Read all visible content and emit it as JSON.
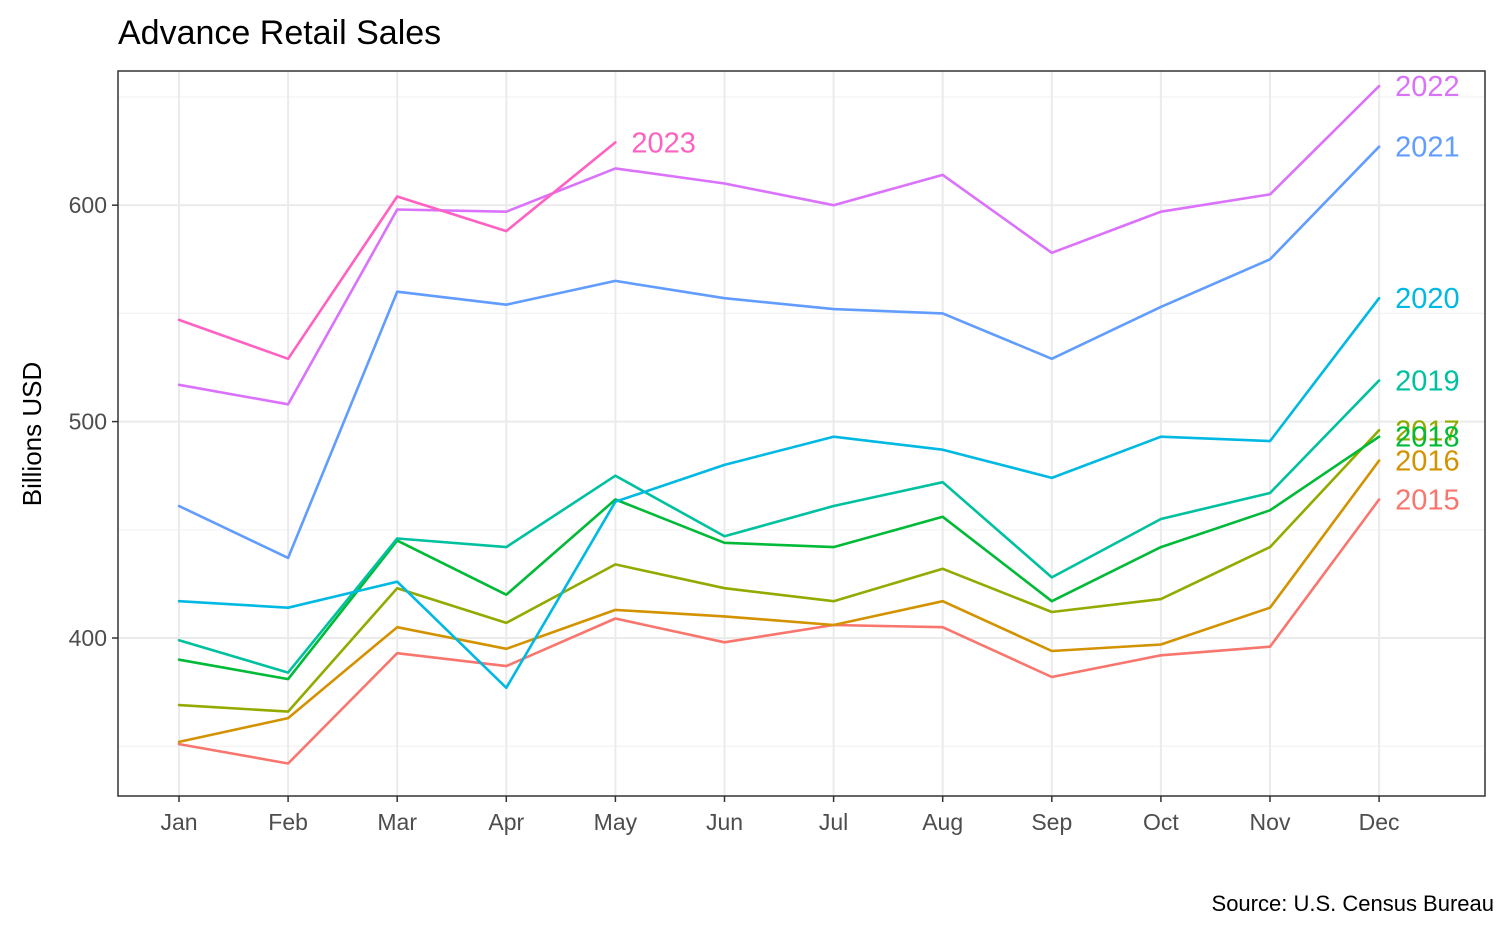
{
  "chart_data": {
    "type": "line",
    "title": "Advance Retail Sales",
    "xlabel": "",
    "ylabel": "Billions USD",
    "caption": "Source: U.S. Census Bureau",
    "categories": [
      "Jan",
      "Feb",
      "Mar",
      "Apr",
      "May",
      "Jun",
      "Jul",
      "Aug",
      "Sep",
      "Oct",
      "Nov",
      "Dec"
    ],
    "ylim": [
      327,
      662
    ],
    "y_major_ticks": [
      400,
      500,
      600
    ],
    "y_minor_ticks": [
      350,
      450,
      550,
      650
    ],
    "grid": true,
    "legend": "direct labels at line ends",
    "series": [
      {
        "name": "2015",
        "color": "#F8766D",
        "values": [
          351,
          342,
          393,
          387,
          409,
          398,
          406,
          405,
          382,
          392,
          396,
          464
        ]
      },
      {
        "name": "2016",
        "color": "#D39200",
        "values": [
          352,
          363,
          405,
          395,
          413,
          410,
          406,
          417,
          394,
          397,
          414,
          482
        ]
      },
      {
        "name": "2017",
        "color": "#93AA00",
        "values": [
          369,
          366,
          423,
          407,
          434,
          423,
          417,
          432,
          412,
          418,
          442,
          496
        ]
      },
      {
        "name": "2018",
        "color": "#00BA38",
        "values": [
          390,
          381,
          445,
          420,
          464,
          444,
          442,
          456,
          417,
          442,
          459,
          493
        ]
      },
      {
        "name": "2019",
        "color": "#00C19F",
        "values": [
          399,
          384,
          446,
          442,
          475,
          447,
          461,
          472,
          428,
          455,
          467,
          519
        ]
      },
      {
        "name": "2020",
        "color": "#00B9E3",
        "values": [
          417,
          414,
          426,
          377,
          463,
          480,
          493,
          487,
          474,
          493,
          491,
          557
        ]
      },
      {
        "name": "2021",
        "color": "#619CFF",
        "values": [
          461,
          437,
          560,
          554,
          565,
          557,
          552,
          550,
          529,
          553,
          575,
          627
        ]
      },
      {
        "name": "2022",
        "color": "#DB72FB",
        "values": [
          517,
          508,
          598,
          597,
          617,
          610,
          600,
          614,
          578,
          597,
          605,
          655
        ]
      },
      {
        "name": "2023",
        "color": "#FF61C3",
        "values": [
          547,
          529,
          604,
          588,
          629,
          null,
          null,
          null,
          null,
          null,
          null,
          null
        ]
      }
    ]
  }
}
